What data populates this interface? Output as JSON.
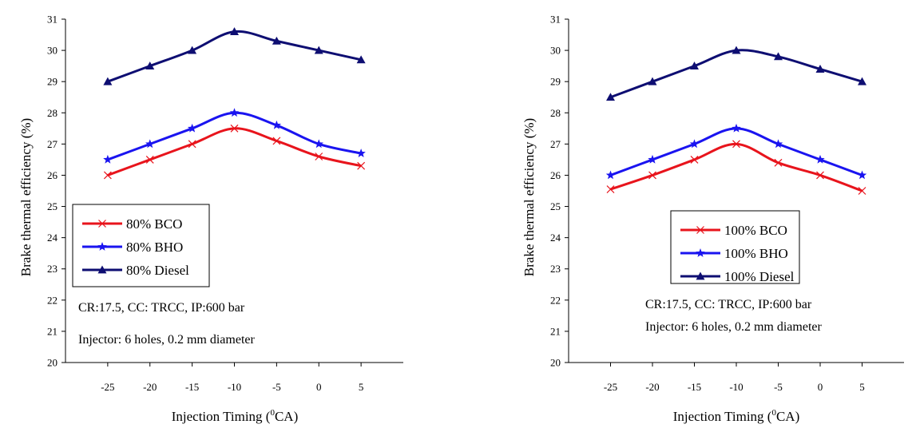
{
  "chart_data": [
    {
      "type": "line",
      "xlabel": "Injection Timing (",
      "xlabel_sup": "0",
      "xlabel_unit": "CA)",
      "ylabel": "Brake thermal efficiency (%)",
      "xlim": [
        -30,
        10
      ],
      "ylim": [
        20,
        31
      ],
      "x_ticks": [
        "-25",
        "-20",
        "-15",
        "-10",
        "-5",
        "0",
        "5"
      ],
      "y_ticks": [
        "20",
        "21",
        "22",
        "23",
        "24",
        "25",
        "26",
        "27",
        "28",
        "29",
        "30",
        "31"
      ],
      "grid": false,
      "legend_position": "lower-left",
      "notes": [
        "CR:17.5, CC: TRCC, IP:600 bar",
        "Injector: 6 holes, 0.2 mm diameter"
      ],
      "series": [
        {
          "name": "80% BCO",
          "color": "#e8141c",
          "marker": "x",
          "x": [
            -25,
            -20,
            -15,
            -10,
            -5,
            0,
            5
          ],
          "values": [
            26.0,
            26.5,
            27.0,
            27.5,
            27.1,
            26.6,
            26.3
          ]
        },
        {
          "name": "80% BHO",
          "color": "#1a14f0",
          "marker": "star",
          "x": [
            -25,
            -20,
            -15,
            -10,
            -5,
            0,
            5
          ],
          "values": [
            26.5,
            27.0,
            27.5,
            28.0,
            27.6,
            27.0,
            26.7
          ]
        },
        {
          "name": "80% Diesel",
          "color": "#0e0e72",
          "marker": "triangle",
          "x": [
            -25,
            -20,
            -15,
            -10,
            -5,
            0,
            5
          ],
          "values": [
            29.0,
            29.5,
            30.0,
            30.6,
            30.3,
            30.0,
            29.7
          ]
        }
      ]
    },
    {
      "type": "line",
      "xlabel": "Injection Timing (",
      "xlabel_sup": "0",
      "xlabel_unit": "CA)",
      "ylabel": "Brake thermal efficiency (%)",
      "xlim": [
        -30,
        10
      ],
      "ylim": [
        20,
        31
      ],
      "x_ticks": [
        "-25",
        "-20",
        "-15",
        "-10",
        "-5",
        "0",
        "5"
      ],
      "y_ticks": [
        "20",
        "21",
        "22",
        "23",
        "24",
        "25",
        "26",
        "27",
        "28",
        "29",
        "30",
        "31"
      ],
      "grid": false,
      "legend_position": "lower-center",
      "notes": [
        "CR:17.5, CC: TRCC, IP:600 bar",
        "Injector: 6 holes, 0.2 mm diameter"
      ],
      "series": [
        {
          "name": "100% BCO",
          "color": "#e8141c",
          "marker": "x",
          "x": [
            -25,
            -20,
            -15,
            -10,
            -5,
            0,
            5
          ],
          "values": [
            25.55,
            26.0,
            26.5,
            27.0,
            26.4,
            26.0,
            25.5
          ]
        },
        {
          "name": "100% BHO",
          "color": "#1a14f0",
          "marker": "star",
          "x": [
            -25,
            -20,
            -15,
            -10,
            -5,
            0,
            5
          ],
          "values": [
            26.0,
            26.5,
            27.0,
            27.5,
            27.0,
            26.5,
            26.0
          ]
        },
        {
          "name": "100% Diesel",
          "color": "#0e0e72",
          "marker": "triangle",
          "x": [
            -25,
            -20,
            -15,
            -10,
            -5,
            0,
            5
          ],
          "values": [
            28.5,
            29.0,
            29.5,
            30.0,
            29.8,
            29.4,
            29.0
          ]
        }
      ]
    }
  ]
}
